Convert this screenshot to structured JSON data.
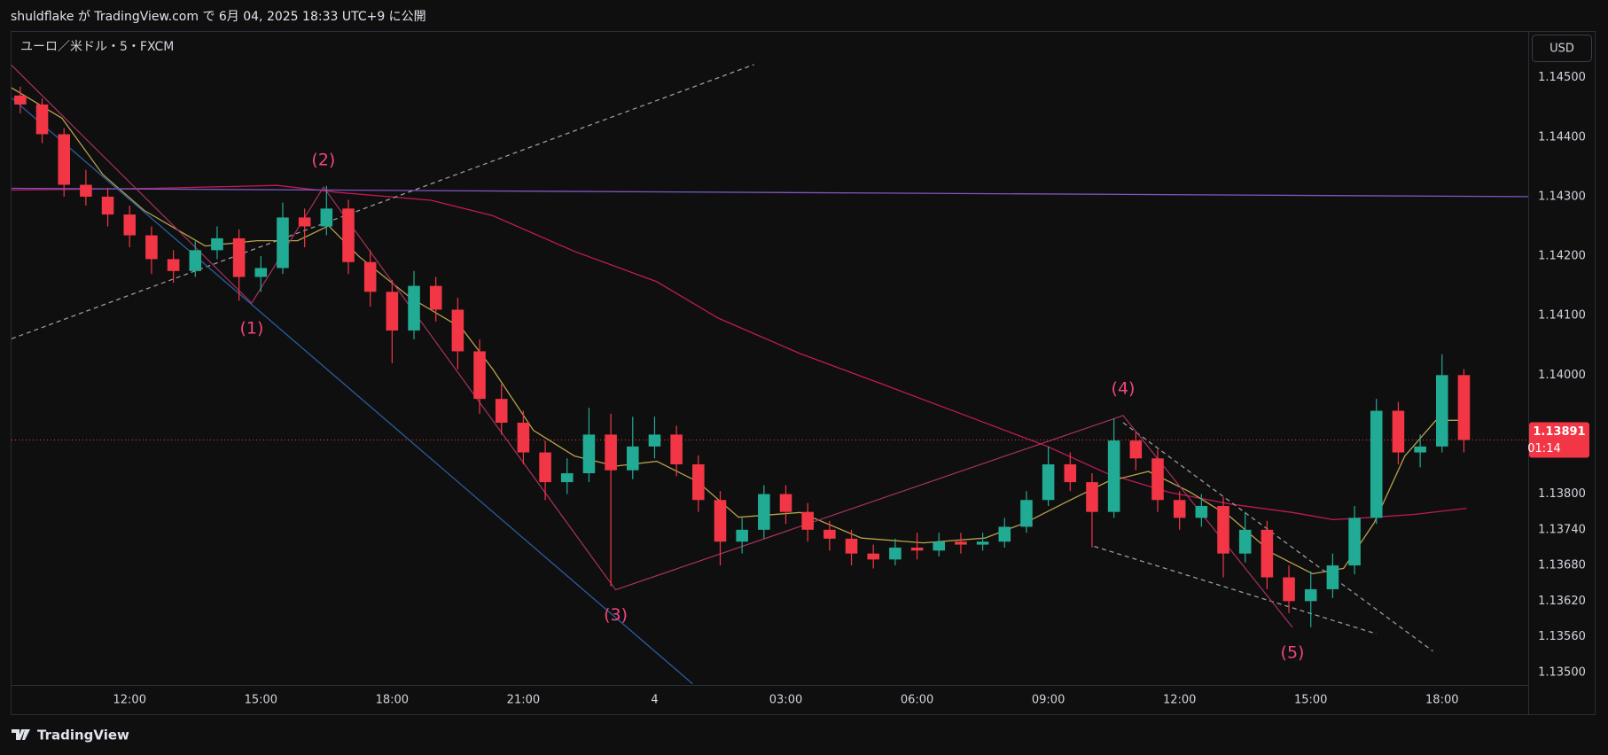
{
  "header": "shuldflake が TradingView.com で 6月 04, 2025 18:33 UTC+9 に公開",
  "footer": "TradingView",
  "chart_data": {
    "type": "candlestick",
    "title": "ユーロ／米ドル・5・FXCM",
    "currency": "USD",
    "up_color": "#22ab94",
    "down_color": "#f23645",
    "xlim": [
      9.3,
      43.97
    ],
    "ylim": [
      1.13479,
      1.14577
    ],
    "xticks": [
      {
        "value": 12,
        "label": "12:00"
      },
      {
        "value": 15,
        "label": "15:00"
      },
      {
        "value": 18,
        "label": "18:00"
      },
      {
        "value": 21,
        "label": "21:00"
      },
      {
        "value": 24,
        "label": "4"
      },
      {
        "value": 27,
        "label": "03:00"
      },
      {
        "value": 30,
        "label": "06:00"
      },
      {
        "value": 33,
        "label": "09:00"
      },
      {
        "value": 36,
        "label": "12:00"
      },
      {
        "value": 39,
        "label": "15:00"
      },
      {
        "value": 42,
        "label": "18:00"
      }
    ],
    "yticks": [
      {
        "value": 1.145,
        "label": "1.14500"
      },
      {
        "value": 1.144,
        "label": "1.14400"
      },
      {
        "value": 1.143,
        "label": "1.14300"
      },
      {
        "value": 1.142,
        "label": "1.14200"
      },
      {
        "value": 1.141,
        "label": "1.14100"
      },
      {
        "value": 1.14,
        "label": "1.14000"
      },
      {
        "value": 1.138,
        "label": "1.13800"
      },
      {
        "value": 1.1374,
        "label": "1.13740"
      },
      {
        "value": 1.1368,
        "label": "1.13680"
      },
      {
        "value": 1.1362,
        "label": "1.13620"
      },
      {
        "value": 1.1356,
        "label": "1.13560"
      },
      {
        "value": 1.135,
        "label": "1.13500"
      }
    ],
    "last_price": {
      "value": 1.13891,
      "label": "1.13891",
      "countdown": "01:14",
      "color": "#f23645"
    },
    "x": [
      9.5,
      10,
      10.5,
      11,
      11.5,
      12,
      12.5,
      13,
      13.5,
      14,
      14.5,
      15,
      15.5,
      16,
      16.5,
      17,
      17.5,
      18,
      18.5,
      19,
      19.5,
      20,
      20.5,
      21,
      21.5,
      22,
      22.5,
      23,
      23.5,
      24,
      24.5,
      25,
      25.5,
      26,
      26.5,
      27,
      27.5,
      28,
      28.5,
      29,
      29.5,
      30,
      30.5,
      31,
      31.5,
      32,
      32.5,
      33,
      33.5,
      34,
      34.5,
      35,
      35.5,
      36,
      36.5,
      37,
      37.5,
      38,
      38.5,
      39,
      39.5,
      40,
      40.5,
      41,
      41.5,
      42,
      42.5
    ],
    "open": [
      1.1447,
      1.14455,
      1.14405,
      1.1432,
      1.143,
      1.1427,
      1.14235,
      1.14195,
      1.14175,
      1.1421,
      1.1423,
      1.14165,
      1.1418,
      1.14265,
      1.1425,
      1.1428,
      1.1419,
      1.1414,
      1.14075,
      1.1415,
      1.1411,
      1.1404,
      1.1396,
      1.1392,
      1.1387,
      1.1382,
      1.13835,
      1.139,
      1.1384,
      1.1388,
      1.139,
      1.1385,
      1.1379,
      1.1372,
      1.1374,
      1.138,
      1.1377,
      1.1374,
      1.13725,
      1.137,
      1.1369,
      1.1371,
      1.13705,
      1.1372,
      1.13715,
      1.1372,
      1.13745,
      1.1379,
      1.1385,
      1.1382,
      1.1377,
      1.1389,
      1.1386,
      1.1379,
      1.1376,
      1.1378,
      1.137,
      1.1374,
      1.1366,
      1.1362,
      1.1364,
      1.1368,
      1.1376,
      1.1394,
      1.1387,
      1.1388,
      1.14
    ],
    "high": [
      1.14485,
      1.14465,
      1.14415,
      1.14345,
      1.14315,
      1.14285,
      1.1425,
      1.1421,
      1.14225,
      1.1425,
      1.14245,
      1.142,
      1.1429,
      1.1428,
      1.14318,
      1.14295,
      1.1421,
      1.1416,
      1.14175,
      1.14165,
      1.1413,
      1.1406,
      1.13985,
      1.1394,
      1.1389,
      1.1386,
      1.13945,
      1.13935,
      1.1393,
      1.1393,
      1.13915,
      1.13865,
      1.13805,
      1.1376,
      1.13815,
      1.13815,
      1.13785,
      1.13755,
      1.1374,
      1.13715,
      1.13725,
      1.13735,
      1.13735,
      1.13735,
      1.13735,
      1.1376,
      1.13805,
      1.1388,
      1.1387,
      1.13835,
      1.13927,
      1.13905,
      1.13875,
      1.13805,
      1.138,
      1.13795,
      1.1377,
      1.13755,
      1.1368,
      1.1367,
      1.137,
      1.1378,
      1.1396,
      1.13955,
      1.139,
      1.14035,
      1.1401
    ],
    "low": [
      1.1444,
      1.1439,
      1.143,
      1.14285,
      1.1425,
      1.14215,
      1.1417,
      1.14155,
      1.14165,
      1.14195,
      1.14125,
      1.1414,
      1.1417,
      1.14215,
      1.14235,
      1.1417,
      1.14115,
      1.1402,
      1.1406,
      1.1409,
      1.1401,
      1.13935,
      1.139,
      1.1385,
      1.1379,
      1.138,
      1.1382,
      1.13645,
      1.13825,
      1.1386,
      1.1383,
      1.1377,
      1.1368,
      1.137,
      1.13725,
      1.1375,
      1.1372,
      1.13705,
      1.1368,
      1.13675,
      1.1368,
      1.1369,
      1.13695,
      1.137,
      1.13705,
      1.1371,
      1.13735,
      1.1378,
      1.13805,
      1.1371,
      1.1376,
      1.1384,
      1.1377,
      1.1374,
      1.13745,
      1.1366,
      1.13685,
      1.1364,
      1.136,
      1.13576,
      1.13625,
      1.13665,
      1.1375,
      1.1385,
      1.13845,
      1.1387,
      1.1387
    ],
    "close": [
      1.14455,
      1.14405,
      1.1432,
      1.143,
      1.1427,
      1.14235,
      1.14195,
      1.14175,
      1.1421,
      1.1423,
      1.14165,
      1.1418,
      1.14265,
      1.1425,
      1.1428,
      1.1419,
      1.1414,
      1.14075,
      1.1415,
      1.1411,
      1.1404,
      1.1396,
      1.1392,
      1.1387,
      1.1382,
      1.13835,
      1.139,
      1.1384,
      1.1388,
      1.139,
      1.1385,
      1.1379,
      1.1372,
      1.1374,
      1.138,
      1.1377,
      1.1374,
      1.13725,
      1.137,
      1.1369,
      1.1371,
      1.13705,
      1.1372,
      1.13715,
      1.1372,
      1.13745,
      1.1379,
      1.1385,
      1.1382,
      1.1377,
      1.1389,
      1.1386,
      1.1379,
      1.1376,
      1.1378,
      1.137,
      1.1374,
      1.1366,
      1.1362,
      1.1364,
      1.1368,
      1.1376,
      1.1394,
      1.1387,
      1.1388,
      1.14,
      1.13891
    ],
    "overlays": [
      {
        "color": "#c2185b",
        "style": "solid",
        "x": [
          9.3,
          12.56,
          15.37,
          16.78,
          18.89,
          20.3,
          22.17,
          24.05,
          25.45,
          27.33,
          29.2,
          31.08,
          32.95,
          34.36,
          35.76,
          37.17,
          38.58,
          39.51,
          40.45,
          41.39,
          42.56
        ],
        "values": [
          1.14311,
          1.14314,
          1.14319,
          1.14307,
          1.14294,
          1.14268,
          1.14208,
          1.14157,
          1.14096,
          1.14036,
          1.13985,
          1.13933,
          1.13881,
          1.13834,
          1.13803,
          1.13783,
          1.13769,
          1.13757,
          1.13761,
          1.13766,
          1.13776
        ]
      },
      {
        "color": "#b8a24c",
        "style": "solid",
        "x": [
          9.3,
          10.45,
          11.39,
          12.33,
          13.73,
          14.91,
          15.84,
          16.55,
          17.25,
          18.42,
          19.59,
          20.3,
          21.23,
          22.17,
          23.11,
          24.05,
          24.98,
          25.92,
          27.33,
          28.73,
          30.14,
          31.55,
          32.48,
          33.42,
          34.36,
          35.29,
          36.23,
          37.17,
          38.11,
          39.04,
          39.75,
          40.45,
          41.15,
          41.86,
          42.56
        ],
        "values": [
          1.14483,
          1.14432,
          1.14337,
          1.14277,
          1.14217,
          1.14226,
          1.14226,
          1.14251,
          1.14199,
          1.1413,
          1.14079,
          1.1401,
          1.13907,
          1.13864,
          1.13847,
          1.13855,
          1.13821,
          1.13761,
          1.13769,
          1.13726,
          1.13718,
          1.13726,
          1.13752,
          1.13787,
          1.13821,
          1.13838,
          1.13804,
          1.13761,
          1.13701,
          1.13666,
          1.13675,
          1.13752,
          1.13864,
          1.13924,
          1.13924
        ]
      },
      {
        "color": "#7e57c2",
        "style": "solid",
        "x": [
          9.3,
          43.97
        ],
        "values": [
          1.14314,
          1.143
        ]
      },
      {
        "color": "#9a9a9a",
        "style": "dashed",
        "x": [
          9.3,
          26.27
        ],
        "values": [
          1.14061,
          1.14522
        ]
      },
      {
        "color": "#2a5d9f",
        "style": "solid",
        "x": [
          9.3,
          24.87
        ],
        "values": [
          1.14466,
          1.13481
        ]
      },
      {
        "color": "#9a9a9a",
        "style": "dashed",
        "x": [
          34.05,
          40.5
        ],
        "values": [
          1.13712,
          1.13565
        ]
      },
      {
        "color": "#9a9a9a",
        "style": "dashed",
        "x": [
          34.71,
          41.79
        ],
        "values": [
          1.1392,
          1.13536
        ]
      }
    ],
    "wave": {
      "color": "#a8325e",
      "label_color": "#f0467a",
      "x": [
        9.3,
        14.79,
        16.43,
        23.11,
        34.71,
        38.58
      ],
      "values": [
        1.14521,
        1.14121,
        1.14316,
        1.13639,
        1.13932,
        1.13576
      ],
      "labels": [
        null,
        "(1)",
        "(2)",
        "(3)",
        "(4)",
        "(5)"
      ]
    }
  }
}
